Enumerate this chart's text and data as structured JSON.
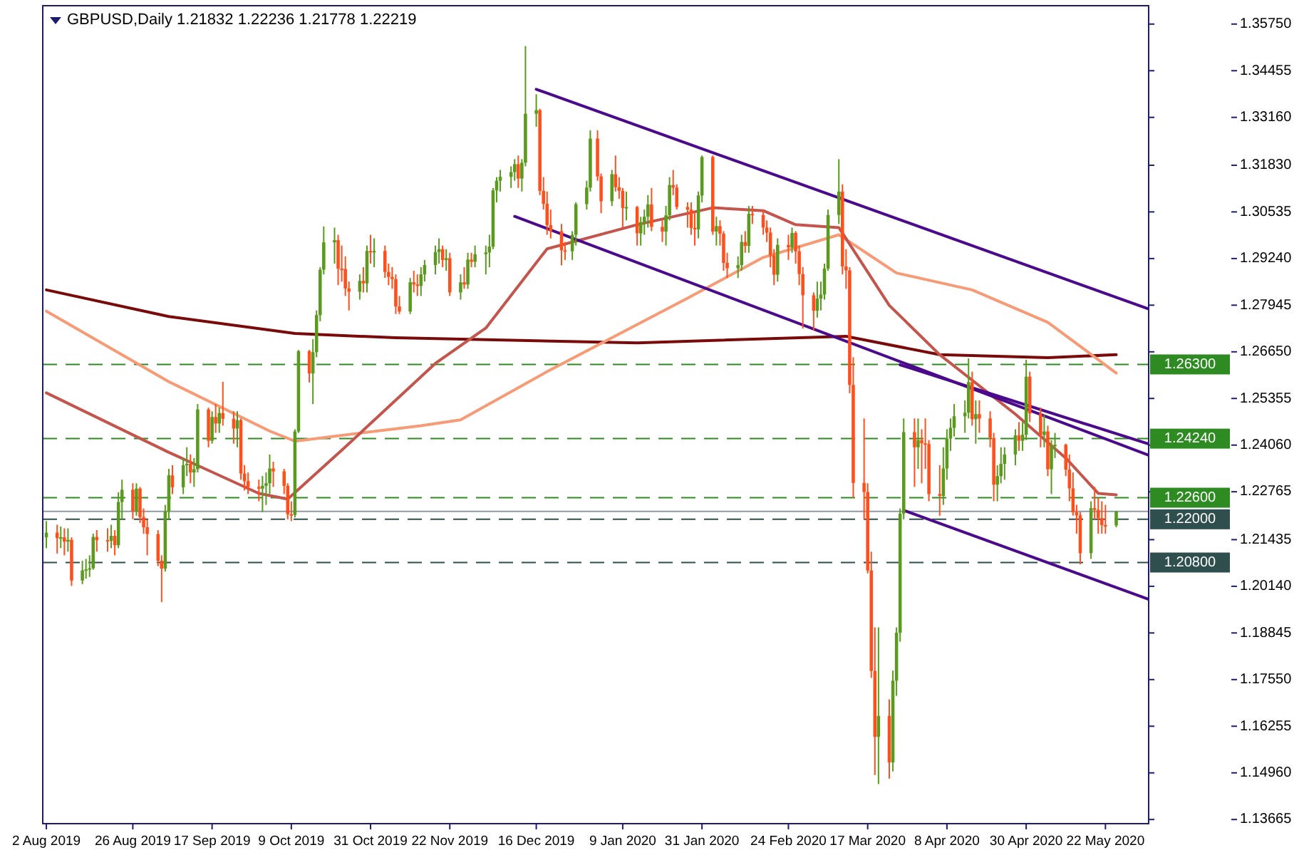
{
  "chart_data": {
    "type": "candlestick",
    "title": "GBPUSD,Daily  1.21832 1.22236 1.21778 1.22219",
    "x": [
      "2019-08-02",
      "2019-08-05",
      "2019-08-06",
      "2019-08-07",
      "2019-08-08",
      "2019-08-09",
      "2019-08-12",
      "2019-08-13",
      "2019-08-14",
      "2019-08-15",
      "2019-08-16",
      "2019-08-19",
      "2019-08-20",
      "2019-08-21",
      "2019-08-22",
      "2019-08-23",
      "2019-08-26",
      "2019-08-27",
      "2019-08-28",
      "2019-08-29",
      "2019-08-30",
      "2019-09-02",
      "2019-09-03",
      "2019-09-04",
      "2019-09-05",
      "2019-09-06",
      "2019-09-09",
      "2019-09-10",
      "2019-09-11",
      "2019-09-12",
      "2019-09-13",
      "2019-09-16",
      "2019-09-17",
      "2019-09-18",
      "2019-09-19",
      "2019-09-20",
      "2019-09-23",
      "2019-09-24",
      "2019-09-25",
      "2019-09-26",
      "2019-09-27",
      "2019-09-30",
      "2019-10-01",
      "2019-10-02",
      "2019-10-03",
      "2019-10-04",
      "2019-10-07",
      "2019-10-08",
      "2019-10-09",
      "2019-10-10",
      "2019-10-11",
      "2019-10-14",
      "2019-10-15",
      "2019-10-16",
      "2019-10-17",
      "2019-10-18",
      "2019-10-21",
      "2019-10-22",
      "2019-10-23",
      "2019-10-24",
      "2019-10-25",
      "2019-10-28",
      "2019-10-29",
      "2019-10-30",
      "2019-10-31",
      "2019-11-01",
      "2019-11-04",
      "2019-11-05",
      "2019-11-06",
      "2019-11-07",
      "2019-11-08",
      "2019-11-11",
      "2019-11-12",
      "2019-11-13",
      "2019-11-14",
      "2019-11-15",
      "2019-11-18",
      "2019-11-19",
      "2019-11-20",
      "2019-11-21",
      "2019-11-22",
      "2019-11-25",
      "2019-11-26",
      "2019-11-27",
      "2019-11-28",
      "2019-11-29",
      "2019-12-02",
      "2019-12-03",
      "2019-12-04",
      "2019-12-05",
      "2019-12-06",
      "2019-12-09",
      "2019-12-10",
      "2019-12-11",
      "2019-12-12",
      "2019-12-13",
      "2019-12-16",
      "2019-12-17",
      "2019-12-18",
      "2019-12-19",
      "2019-12-20",
      "2019-12-23",
      "2019-12-24",
      "2019-12-26",
      "2019-12-27",
      "2019-12-30",
      "2019-12-31",
      "2020-01-02",
      "2020-01-03",
      "2020-01-06",
      "2020-01-07",
      "2020-01-08",
      "2020-01-09",
      "2020-01-10",
      "2020-01-13",
      "2020-01-14",
      "2020-01-15",
      "2020-01-16",
      "2020-01-17",
      "2020-01-20",
      "2020-01-21",
      "2020-01-22",
      "2020-01-23",
      "2020-01-24",
      "2020-01-27",
      "2020-01-28",
      "2020-01-29",
      "2020-01-30",
      "2020-01-31",
      "2020-02-03",
      "2020-02-04",
      "2020-02-05",
      "2020-02-06",
      "2020-02-07",
      "2020-02-10",
      "2020-02-11",
      "2020-02-12",
      "2020-02-13",
      "2020-02-14",
      "2020-02-17",
      "2020-02-18",
      "2020-02-19",
      "2020-02-20",
      "2020-02-21",
      "2020-02-24",
      "2020-02-25",
      "2020-02-26",
      "2020-02-27",
      "2020-02-28",
      "2020-03-02",
      "2020-03-03",
      "2020-03-04",
      "2020-03-05",
      "2020-03-06",
      "2020-03-09",
      "2020-03-10",
      "2020-03-11",
      "2020-03-12",
      "2020-03-13",
      "2020-03-16",
      "2020-03-17",
      "2020-03-18",
      "2020-03-19",
      "2020-03-20",
      "2020-03-23",
      "2020-03-24",
      "2020-03-25",
      "2020-03-26",
      "2020-03-27",
      "2020-03-30",
      "2020-03-31",
      "2020-04-01",
      "2020-04-02",
      "2020-04-03",
      "2020-04-06",
      "2020-04-07",
      "2020-04-08",
      "2020-04-09",
      "2020-04-10",
      "2020-04-13",
      "2020-04-14",
      "2020-04-15",
      "2020-04-16",
      "2020-04-17",
      "2020-04-20",
      "2020-04-21",
      "2020-04-22",
      "2020-04-23",
      "2020-04-24",
      "2020-04-27",
      "2020-04-28",
      "2020-04-29",
      "2020-04-30",
      "2020-05-01",
      "2020-05-04",
      "2020-05-05",
      "2020-05-06",
      "2020-05-07",
      "2020-05-08",
      "2020-05-11",
      "2020-05-12",
      "2020-05-13",
      "2020-05-14",
      "2020-05-15",
      "2020-05-18",
      "2020-05-19",
      "2020-05-20",
      "2020-05-21",
      "2020-05-22",
      "2020-05-25"
    ],
    "ohlc": [
      [
        1.215,
        1.2195,
        1.212,
        1.2163
      ],
      [
        1.2163,
        1.2185,
        1.2105,
        1.2148
      ],
      [
        1.2148,
        1.218,
        1.212,
        1.215
      ],
      [
        1.215,
        1.2175,
        1.21,
        1.2138
      ],
      [
        1.2138,
        1.2175,
        1.211,
        1.2143
      ],
      [
        1.2143,
        1.215,
        1.2015,
        1.203
      ],
      [
        1.203,
        1.2085,
        1.202,
        1.2058
      ],
      [
        1.2058,
        1.209,
        1.2035,
        1.2061
      ],
      [
        1.2061,
        1.21,
        1.204,
        1.2064
      ],
      [
        1.2064,
        1.216,
        1.206,
        1.2151
      ],
      [
        1.2151,
        1.217,
        1.211,
        1.2142
      ],
      [
        1.2142,
        1.2175,
        1.211,
        1.214
      ],
      [
        1.214,
        1.2185,
        1.212,
        1.2154
      ],
      [
        1.2154,
        1.217,
        1.21,
        1.2128
      ],
      [
        1.2128,
        1.2275,
        1.212,
        1.2248
      ],
      [
        1.2248,
        1.231,
        1.22,
        1.2282
      ],
      [
        1.2282,
        1.23,
        1.22,
        1.2222
      ],
      [
        1.2222,
        1.23,
        1.221,
        1.2285
      ],
      [
        1.2285,
        1.229,
        1.219,
        1.2206
      ],
      [
        1.2206,
        1.223,
        1.216,
        1.2178
      ],
      [
        1.2178,
        1.22,
        1.21,
        1.2159
      ],
      [
        1.2159,
        1.217,
        1.207,
        1.2085
      ],
      [
        1.2085,
        1.21,
        1.197,
        1.2063
      ],
      [
        1.2063,
        1.224,
        1.2055,
        1.2222
      ],
      [
        1.2222,
        1.234,
        1.22,
        1.2322
      ],
      [
        1.2322,
        1.235,
        1.227,
        1.2289
      ],
      [
        1.2289,
        1.237,
        1.227,
        1.235
      ],
      [
        1.235,
        1.24,
        1.232,
        1.2354
      ],
      [
        1.2354,
        1.238,
        1.23,
        1.233
      ],
      [
        1.233,
        1.237,
        1.229,
        1.2339
      ],
      [
        1.2339,
        1.252,
        1.233,
        1.2505
      ],
      [
        1.2505,
        1.251,
        1.24,
        1.2418
      ],
      [
        1.2418,
        1.25,
        1.241,
        1.2484
      ],
      [
        1.2484,
        1.252,
        1.244,
        1.2466
      ],
      [
        1.2466,
        1.251,
        1.244,
        1.2495
      ],
      [
        1.2495,
        1.2582,
        1.246,
        1.2479
      ],
      [
        1.2479,
        1.25,
        1.241,
        1.2452
      ],
      [
        1.2452,
        1.25,
        1.24,
        1.2475
      ],
      [
        1.2475,
        1.248,
        1.231,
        1.2327
      ],
      [
        1.2327,
        1.235,
        1.228,
        1.2306
      ],
      [
        1.2306,
        1.233,
        1.227,
        1.229
      ],
      [
        1.229,
        1.231,
        1.225,
        1.2285
      ],
      [
        1.2285,
        1.232,
        1.222,
        1.2293
      ],
      [
        1.2293,
        1.233,
        1.224,
        1.23
      ],
      [
        1.23,
        1.238,
        1.227,
        1.2341
      ],
      [
        1.2341,
        1.236,
        1.229,
        1.2333
      ],
      [
        1.2333,
        1.234,
        1.227,
        1.2293
      ],
      [
        1.2293,
        1.23,
        1.22,
        1.2214
      ],
      [
        1.2214,
        1.225,
        1.2195,
        1.2212
      ],
      [
        1.2212,
        1.245,
        1.2205,
        1.2444
      ],
      [
        1.2444,
        1.267,
        1.244,
        1.2667
      ],
      [
        1.2667,
        1.267,
        1.258,
        1.2605
      ],
      [
        1.2605,
        1.27,
        1.252,
        1.2664
      ],
      [
        1.2664,
        1.278,
        1.265,
        1.2767
      ],
      [
        1.2767,
        1.29,
        1.275,
        1.2893
      ],
      [
        1.2893,
        1.3013,
        1.288,
        1.2969
      ],
      [
        1.2969,
        1.301,
        1.291,
        1.2975
      ],
      [
        1.2975,
        1.299,
        1.285,
        1.2896
      ],
      [
        1.2896,
        1.296,
        1.286,
        1.2895
      ],
      [
        1.2895,
        1.293,
        1.282,
        1.2841
      ],
      [
        1.2841,
        1.286,
        1.278,
        1.2832
      ],
      [
        1.2832,
        1.288,
        1.281,
        1.2862
      ],
      [
        1.2862,
        1.29,
        1.283,
        1.2855
      ],
      [
        1.2855,
        1.296,
        1.283,
        1.2945
      ],
      [
        1.2945,
        1.299,
        1.291,
        1.2941
      ],
      [
        1.2941,
        1.298,
        1.29,
        1.2945
      ],
      [
        1.2945,
        1.296,
        1.287,
        1.2887
      ],
      [
        1.2887,
        1.291,
        1.285,
        1.2873
      ],
      [
        1.2873,
        1.29,
        1.284,
        1.2867
      ],
      [
        1.2867,
        1.288,
        1.277,
        1.2791
      ],
      [
        1.2791,
        1.282,
        1.277,
        1.2777
      ],
      [
        1.2777,
        1.287,
        1.277,
        1.2858
      ],
      [
        1.2858,
        1.289,
        1.283,
        1.2852
      ],
      [
        1.2852,
        1.288,
        1.282,
        1.2848
      ],
      [
        1.2848,
        1.29,
        1.282,
        1.288
      ],
      [
        1.288,
        1.292,
        1.286,
        1.2906
      ],
      [
        1.2906,
        1.296,
        1.288,
        1.2942
      ],
      [
        1.2942,
        1.298,
        1.291,
        1.295
      ],
      [
        1.295,
        1.296,
        1.29,
        1.292
      ],
      [
        1.292,
        1.295,
        1.289,
        1.2925
      ],
      [
        1.2925,
        1.294,
        1.282,
        1.283
      ],
      [
        1.283,
        1.288,
        1.281,
        1.2858
      ],
      [
        1.2858,
        1.29,
        1.284,
        1.2852
      ],
      [
        1.2852,
        1.294,
        1.284,
        1.2921
      ],
      [
        1.2921,
        1.294,
        1.29,
        1.2915
      ],
      [
        1.2915,
        1.296,
        1.29,
        1.2936
      ],
      [
        1.2936,
        1.296,
        1.288,
        1.2941
      ],
      [
        1.2941,
        1.299,
        1.29,
        1.2957
      ],
      [
        1.2957,
        1.312,
        1.295,
        1.3113
      ],
      [
        1.3113,
        1.315,
        1.308,
        1.314
      ],
      [
        1.314,
        1.317,
        1.311,
        1.3151
      ],
      [
        1.3151,
        1.318,
        1.312,
        1.3164
      ],
      [
        1.3164,
        1.32,
        1.314,
        1.3186
      ],
      [
        1.3186,
        1.321,
        1.312,
        1.3146
      ],
      [
        1.3146,
        1.32,
        1.311,
        1.319
      ],
      [
        1.319,
        1.3514,
        1.318,
        1.3326
      ],
      [
        1.3326,
        1.338,
        1.329,
        1.3336
      ],
      [
        1.3336,
        1.334,
        1.31,
        1.3112
      ],
      [
        1.3112,
        1.315,
        1.306,
        1.3076
      ],
      [
        1.3076,
        1.311,
        1.299,
        1.3017
      ],
      [
        1.3017,
        1.306,
        1.298,
        1.3
      ],
      [
        1.3,
        1.302,
        1.2905,
        1.2947
      ],
      [
        1.2947,
        1.297,
        1.292,
        1.2944
      ],
      [
        1.2944,
        1.3,
        1.292,
        1.299
      ],
      [
        1.299,
        1.308,
        1.296,
        1.3075
      ],
      [
        1.3075,
        1.314,
        1.306,
        1.3121
      ],
      [
        1.3121,
        1.328,
        1.311,
        1.3257
      ],
      [
        1.3257,
        1.328,
        1.314,
        1.3152
      ],
      [
        1.3152,
        1.316,
        1.305,
        1.3083
      ],
      [
        1.3083,
        1.317,
        1.307,
        1.3158
      ],
      [
        1.3158,
        1.321,
        1.311,
        1.3122
      ],
      [
        1.3122,
        1.315,
        1.309,
        1.3112
      ],
      [
        1.3112,
        1.312,
        1.301,
        1.3064
      ],
      [
        1.3064,
        1.311,
        1.303,
        1.3067
      ],
      [
        1.3067,
        1.307,
        1.296,
        1.2994
      ],
      [
        1.2994,
        1.304,
        1.296,
        1.3025
      ],
      [
        1.3025,
        1.306,
        1.299,
        1.304
      ],
      [
        1.304,
        1.31,
        1.301,
        1.3074
      ],
      [
        1.3074,
        1.312,
        1.3,
        1.3012
      ],
      [
        1.3012,
        1.303,
        1.297,
        1.2999
      ],
      [
        1.2999,
        1.307,
        1.296,
        1.3044
      ],
      [
        1.3044,
        1.315,
        1.303,
        1.3128
      ],
      [
        1.3128,
        1.317,
        1.31,
        1.3121
      ],
      [
        1.3121,
        1.313,
        1.306,
        1.3067
      ],
      [
        1.3067,
        1.308,
        1.301,
        1.306
      ],
      [
        1.306,
        1.308,
        1.299,
        1.3009
      ],
      [
        1.3009,
        1.305,
        1.296,
        1.3005
      ],
      [
        1.3005,
        1.311,
        1.298,
        1.3099
      ],
      [
        1.3099,
        1.321,
        1.308,
        1.3206
      ],
      [
        1.3206,
        1.321,
        1.299,
        1.2999
      ],
      [
        1.2999,
        1.304,
        1.296,
        1.3014
      ],
      [
        1.3014,
        1.303,
        1.296,
        1.2993
      ],
      [
        1.2993,
        1.3,
        1.289,
        1.2912
      ],
      [
        1.2912,
        1.294,
        1.287,
        1.2897
      ],
      [
        1.2897,
        1.293,
        1.287,
        1.2906
      ],
      [
        1.2906,
        1.299,
        1.289,
        1.297
      ],
      [
        1.297,
        1.3,
        1.294,
        1.2959
      ],
      [
        1.2959,
        1.307,
        1.294,
        1.3048
      ],
      [
        1.3048,
        1.307,
        1.302,
        1.3045
      ],
      [
        1.3045,
        1.306,
        1.299,
        1.301
      ],
      [
        1.301,
        1.303,
        1.297,
        1.2996
      ],
      [
        1.2996,
        1.301,
        1.29,
        1.2933
      ],
      [
        1.2933,
        1.295,
        1.285,
        1.2879
      ],
      [
        1.2879,
        1.298,
        1.286,
        1.2962
      ],
      [
        1.2962,
        1.299,
        1.292,
        1.2955
      ],
      [
        1.2955,
        1.301,
        1.294,
        1.2995
      ],
      [
        1.2995,
        1.3,
        1.291,
        1.2944
      ],
      [
        1.2944,
        1.296,
        1.285,
        1.2881
      ],
      [
        1.2881,
        1.29,
        1.273,
        1.2822
      ],
      [
        1.2822,
        1.283,
        1.2725,
        1.2779
      ],
      [
        1.2779,
        1.286,
        1.276,
        1.2813
      ],
      [
        1.2813,
        1.286,
        1.278,
        1.2824
      ],
      [
        1.2824,
        1.291,
        1.281,
        1.2896
      ],
      [
        1.2896,
        1.306,
        1.289,
        1.3045
      ],
      [
        1.3045,
        1.32,
        1.302,
        1.311
      ],
      [
        1.311,
        1.313,
        1.288,
        1.2902
      ],
      [
        1.2902,
        1.295,
        1.284,
        1.2891
      ],
      [
        1.2891,
        1.29,
        1.255,
        1.2573
      ],
      [
        1.2573,
        1.265,
        1.226,
        1.2301
      ],
      [
        1.2301,
        1.248,
        1.22,
        1.2276
      ],
      [
        1.2276,
        1.23,
        1.205,
        1.2058
      ],
      [
        1.2058,
        1.211,
        1.176,
        1.1779
      ],
      [
        1.1779,
        1.19,
        1.149,
        1.1596
      ],
      [
        1.1596,
        1.19,
        1.1465,
        1.1654
      ],
      [
        1.1654,
        1.17,
        1.148,
        1.1525
      ],
      [
        1.1525,
        1.178,
        1.15,
        1.1752
      ],
      [
        1.1752,
        1.19,
        1.171,
        1.1885
      ],
      [
        1.1885,
        1.223,
        1.186,
        1.2216
      ],
      [
        1.2216,
        1.248,
        1.22,
        1.2442
      ],
      [
        1.2442,
        1.248,
        1.229,
        1.24
      ],
      [
        1.24,
        1.248,
        1.234,
        1.242
      ],
      [
        1.242,
        1.245,
        1.23,
        1.2411
      ],
      [
        1.2411,
        1.248,
        1.234,
        1.2409
      ],
      [
        1.2409,
        1.242,
        1.225,
        1.227
      ],
      [
        1.227,
        1.235,
        1.221,
        1.2265
      ],
      [
        1.2265,
        1.24,
        1.224,
        1.2341
      ],
      [
        1.2341,
        1.245,
        1.231,
        1.2424
      ],
      [
        1.2424,
        1.248,
        1.239,
        1.2454
      ],
      [
        1.2454,
        1.252,
        1.243,
        1.2486
      ],
      [
        1.2486,
        1.253,
        1.244,
        1.2496
      ],
      [
        1.2496,
        1.2647,
        1.248,
        1.2581
      ],
      [
        1.2581,
        1.261,
        1.246,
        1.2478
      ],
      [
        1.2478,
        1.253,
        1.241,
        1.2492
      ],
      [
        1.2492,
        1.253,
        1.244,
        1.248
      ],
      [
        1.248,
        1.25,
        1.24,
        1.2426
      ],
      [
        1.2426,
        1.244,
        1.225,
        1.2296
      ],
      [
        1.2296,
        1.235,
        1.225,
        1.232
      ],
      [
        1.232,
        1.24,
        1.23,
        1.2354
      ],
      [
        1.2354,
        1.24,
        1.231,
        1.238
      ],
      [
        1.238,
        1.245,
        1.235,
        1.2433
      ],
      [
        1.2433,
        1.247,
        1.239,
        1.2418
      ],
      [
        1.2418,
        1.247,
        1.239,
        1.2435
      ],
      [
        1.2435,
        1.2643,
        1.242,
        1.2596
      ],
      [
        1.2596,
        1.261,
        1.247,
        1.2494
      ],
      [
        1.2494,
        1.251,
        1.24,
        1.2434
      ],
      [
        1.2434,
        1.249,
        1.24,
        1.2444
      ],
      [
        1.2444,
        1.246,
        1.232,
        1.2339
      ],
      [
        1.2339,
        1.242,
        1.227,
        1.2404
      ],
      [
        1.2404,
        1.244,
        1.237,
        1.2407
      ],
      [
        1.2407,
        1.241,
        1.232,
        1.2338
      ],
      [
        1.2338,
        1.238,
        1.225,
        1.2286
      ],
      [
        1.2286,
        1.233,
        1.221,
        1.222
      ],
      [
        1.222,
        1.224,
        1.216,
        1.2211
      ],
      [
        1.2211,
        1.222,
        1.2075,
        1.2106
      ],
      [
        1.2106,
        1.225,
        1.209,
        1.2231
      ],
      [
        1.2231,
        1.229,
        1.22,
        1.2226
      ],
      [
        1.2226,
        1.226,
        1.216,
        1.2203
      ],
      [
        1.2203,
        1.225,
        1.216,
        1.2184
      ],
      [
        1.2184,
        1.224,
        1.216,
        1.2183
      ],
      [
        1.21832,
        1.22236,
        1.21778,
        1.22219
      ]
    ],
    "series": [
      {
        "type": "line",
        "color": "#7a0a0a",
        "x": [
          "2019-08-02",
          "2019-09-05",
          "2019-10-10",
          "2019-11-07",
          "2020-01-13",
          "2020-03-11",
          "2020-04-06",
          "2020-05-06",
          "2020-05-25"
        ],
        "values": [
          1.2837,
          1.2763,
          1.2716,
          1.2704,
          1.269,
          1.2708,
          1.2657,
          1.2649,
          1.2657
        ]
      },
      {
        "type": "line",
        "color": "#f79a76",
        "x": [
          "2019-08-02",
          "2019-09-05",
          "2019-10-03",
          "2019-10-10",
          "2019-11-14",
          "2019-11-25",
          "2019-12-19",
          "2020-01-27",
          "2020-02-17",
          "2020-03-09",
          "2020-03-25",
          "2020-04-15",
          "2020-05-06",
          "2020-05-25"
        ],
        "values": [
          1.2778,
          1.2582,
          1.2445,
          1.2417,
          1.246,
          1.2476,
          1.261,
          1.2814,
          1.2927,
          1.299,
          1.2884,
          1.2837,
          1.2747,
          1.2606
        ]
      },
      {
        "type": "line",
        "color": "#c4554d",
        "x": [
          "2019-08-02",
          "2019-09-05",
          "2019-09-30",
          "2019-10-08",
          "2019-10-24",
          "2019-11-18",
          "2019-12-02",
          "2019-12-19",
          "2020-01-13",
          "2020-02-03",
          "2020-02-17",
          "2020-02-26",
          "2020-03-09",
          "2020-03-23",
          "2020-04-06",
          "2020-04-27",
          "2020-05-11",
          "2020-05-20",
          "2020-05-25"
        ],
        "values": [
          1.2551,
          1.2386,
          1.2272,
          1.2256,
          1.2401,
          1.2633,
          1.2731,
          1.2951,
          1.3018,
          1.3065,
          1.3057,
          1.3018,
          1.301,
          1.2794,
          1.2657,
          1.2492,
          1.237,
          1.2272,
          1.2268
        ]
      },
      {
        "type": "line",
        "color": "#4b0a8c",
        "x": [
          "2019-12-16",
          "2020-06-03"
        ],
        "values": [
          1.3394,
          1.2784
        ]
      },
      {
        "type": "line",
        "color": "#4b0a8c",
        "x": [
          "2019-12-10",
          "2020-06-03"
        ],
        "values": [
          1.3041,
          1.2378
        ]
      },
      {
        "type": "line",
        "color": "#4b0a8c",
        "x": [
          "2020-03-26",
          "2020-06-03"
        ],
        "values": [
          1.2629,
          1.2409
        ]
      },
      {
        "type": "line",
        "color": "#4b0a8c",
        "x": [
          "2020-03-27",
          "2020-06-03"
        ],
        "values": [
          1.2225,
          1.1978
        ]
      }
    ],
    "xlim": [
      "2019-08-01",
      "2020-06-03"
    ],
    "xticks": [
      {
        "value": "2019-08-02",
        "label": "2 Aug 2019"
      },
      {
        "value": "2019-08-26",
        "label": "26 Aug 2019"
      },
      {
        "value": "2019-09-17",
        "label": "17 Sep 2019"
      },
      {
        "value": "2019-10-09",
        "label": "9 Oct 2019"
      },
      {
        "value": "2019-10-31",
        "label": "31 Oct 2019"
      },
      {
        "value": "2019-11-22",
        "label": "22 Nov 2019"
      },
      {
        "value": "2019-12-16",
        "label": "16 Dec 2019"
      },
      {
        "value": "2020-01-09",
        "label": "9 Jan 2020"
      },
      {
        "value": "2020-01-31",
        "label": "31 Jan 2020"
      },
      {
        "value": "2020-02-24",
        "label": "24 Feb 2020"
      },
      {
        "value": "2020-03-17",
        "label": "17 Mar 2020"
      },
      {
        "value": "2020-04-08",
        "label": "8 Apr 2020"
      },
      {
        "value": "2020-04-30",
        "label": "30 Apr 2020"
      },
      {
        "value": "2020-05-22",
        "label": "22 May 2020"
      }
    ],
    "ylim": [
      1.1355,
      1.3626
    ],
    "yticks": [
      {
        "value": 1.3575,
        "label": "1.35750"
      },
      {
        "value": 1.34455,
        "label": "1.34455"
      },
      {
        "value": 1.3316,
        "label": "1.33160"
      },
      {
        "value": 1.3183,
        "label": "1.31830"
      },
      {
        "value": 1.30535,
        "label": "1.30535"
      },
      {
        "value": 1.2924,
        "label": "1.29240"
      },
      {
        "value": 1.27945,
        "label": "1.27945"
      },
      {
        "value": 1.2665,
        "label": "1.26650"
      },
      {
        "value": 1.25355,
        "label": "1.25355"
      },
      {
        "value": 1.2406,
        "label": "1.24060"
      },
      {
        "value": 1.22765,
        "label": "1.22765"
      },
      {
        "value": 1.21435,
        "label": "1.21435"
      },
      {
        "value": 1.2014,
        "label": "1.20140"
      },
      {
        "value": 1.18845,
        "label": "1.18845"
      },
      {
        "value": 1.1755,
        "label": "1.17550"
      },
      {
        "value": 1.16255,
        "label": "1.16255"
      },
      {
        "value": 1.1496,
        "label": "1.14960"
      },
      {
        "value": 1.13665,
        "label": "1.13665"
      }
    ],
    "ref_lines": [
      {
        "axis": "y",
        "value": 1.263,
        "label": "1.26300",
        "color": "#2e8b22",
        "line_style": "dashed"
      },
      {
        "axis": "y",
        "value": 1.2424,
        "label": "1.24240",
        "color": "#2e8b22",
        "line_style": "dashed"
      },
      {
        "axis": "y",
        "value": 1.226,
        "label": "1.22600",
        "color": "#2e8b22",
        "line_style": "dashed"
      },
      {
        "axis": "y",
        "value": 1.22219,
        "color": "#8f9aa6",
        "line_style": "solid"
      },
      {
        "axis": "y",
        "value": 1.22,
        "label": "1.22000",
        "color": "#2f4f4f",
        "line_style": "dashed"
      },
      {
        "axis": "y",
        "value": 1.208,
        "label": "1.20800",
        "color": "#2f4f4f",
        "line_style": "dashed"
      }
    ]
  }
}
